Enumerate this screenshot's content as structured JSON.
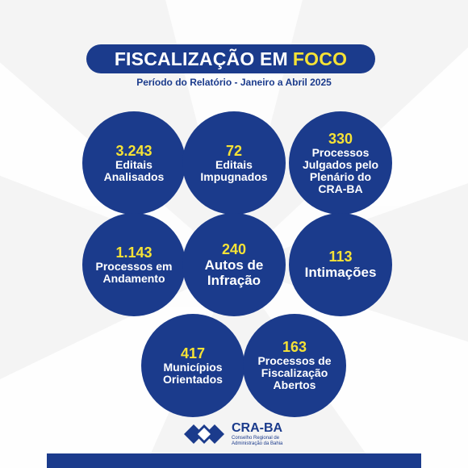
{
  "title": {
    "main": "FISCALIZAÇÃO EM",
    "accent": "FOCO"
  },
  "period": "Período do Relatório - Janeiro a Abril 2025",
  "stats": [
    {
      "value": "3.243",
      "label_lines": [
        "Editais",
        "Analisados"
      ]
    },
    {
      "value": "72",
      "label_lines": [
        "Editais",
        "Impugnados"
      ]
    },
    {
      "value": "330",
      "label_lines": [
        "Processos",
        "Julgados pelo",
        "Plenário do",
        "CRA-BA"
      ]
    },
    {
      "value": "1.143",
      "label_lines": [
        "Processos em",
        "Andamento"
      ]
    },
    {
      "value": "240",
      "label_lines": [
        "Autos de",
        "Infração"
      ]
    },
    {
      "value": "113",
      "label_lines": [
        "Intimações"
      ]
    },
    {
      "value": "417",
      "label_lines": [
        "Municípios",
        "Orientados"
      ]
    },
    {
      "value": "163",
      "label_lines": [
        "Processos de",
        "Fiscalização",
        "Abertos"
      ]
    }
  ],
  "org": {
    "name": "CRA-BA",
    "subtitle_lines": [
      "Conselho Regional de",
      "Administração da Bahia"
    ]
  },
  "icons": [
    "cra-logo-icon"
  ],
  "colors": {
    "primary": "#1b3b8c",
    "accent": "#f5e236",
    "background": "#f4f4f4"
  }
}
